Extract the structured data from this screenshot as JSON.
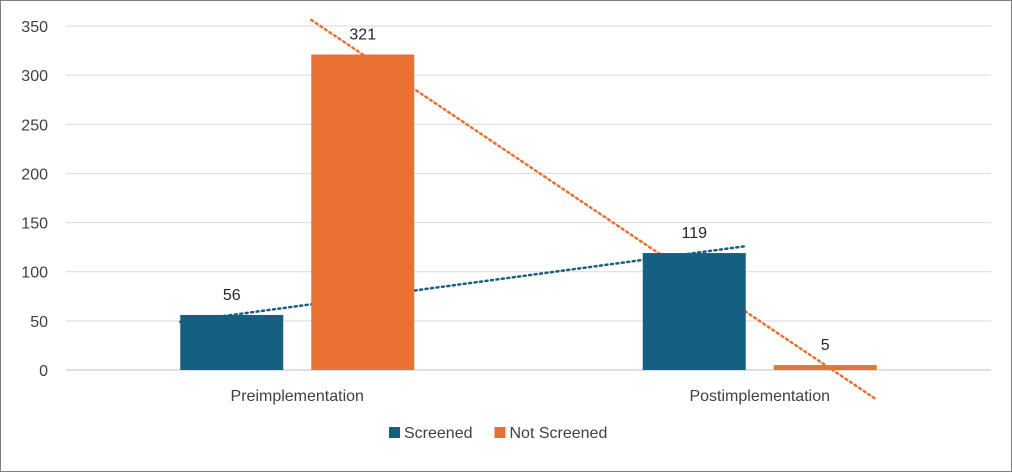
{
  "chart_data": {
    "type": "bar",
    "categories": [
      "Preimplementation",
      "Postimplementation"
    ],
    "series": [
      {
        "name": "Screened",
        "values": [
          56,
          119
        ],
        "color": "#156082"
      },
      {
        "name": "Not Screened",
        "values": [
          321,
          5
        ],
        "color": "#E97132"
      }
    ],
    "data_labels": true,
    "trendlines": "linear, dotted, one per series",
    "ylim": [
      0,
      350
    ],
    "yticks": [
      0,
      50,
      100,
      150,
      200,
      250,
      300,
      350
    ],
    "grid": true,
    "legend": "bottom"
  }
}
